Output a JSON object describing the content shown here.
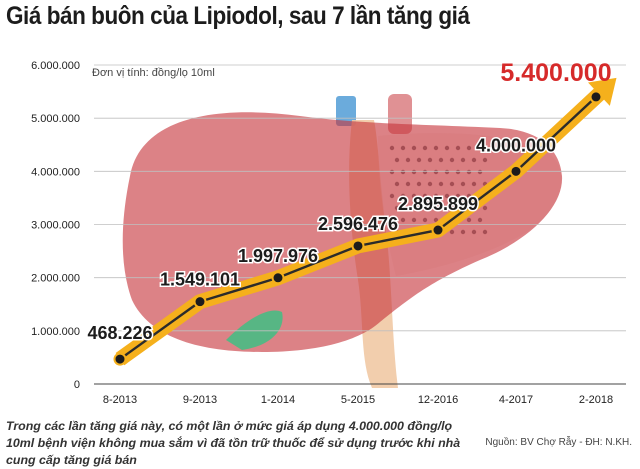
{
  "title": "Giá bán buôn của Lipiodol, sau 7 lần tăng giá",
  "footnote": "Trong các lần tăng giá này, có một lần ở mức giá áp dụng 4.000.000 đồng/lọ 10ml bệnh viện không mua sắm vì đã tồn trữ thuốc để sử dụng trước khi nhà cung cấp tăng giá bán",
  "source": "Nguồn: BV Chợ Rẫy - ĐH: N.KH.",
  "colors": {
    "arrow": "#f5b01c",
    "line": "#2b2b2b",
    "highlight": "#d62a2a",
    "liver": "#c6363c"
  },
  "chart_data": {
    "type": "line",
    "title": "Giá bán buôn của Lipiodol, sau 7 lần tăng giá",
    "unit_note": "Đơn vị tính: đồng/lọ 10ml",
    "categories": [
      "8-2013",
      "9-2013",
      "1-2014",
      "5-2015",
      "12-2016",
      "4-2017",
      "2-2018"
    ],
    "values": [
      468226,
      1549101,
      1997976,
      2596476,
      2895899,
      4000000,
      5400000
    ],
    "data_labels": [
      "468.226",
      "1.549.101",
      "1.997.976",
      "2.596.476",
      "2.895.899",
      "4.000.000",
      "5.400.000"
    ],
    "ylim": [
      0,
      6000000
    ],
    "y_ticks": [
      0,
      1000000,
      2000000,
      3000000,
      4000000,
      5000000,
      6000000
    ],
    "y_tick_labels": [
      "0",
      "1.000.000",
      "2.000.000",
      "3.000.000",
      "4.000.000",
      "5.000.000",
      "6.000.000"
    ],
    "grid": true,
    "xlabel": "",
    "ylabel": ""
  }
}
